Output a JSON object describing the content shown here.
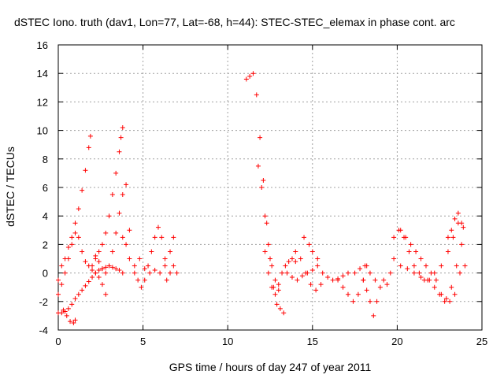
{
  "chart_data": {
    "type": "scatter",
    "title": "dSTEC Iono. truth (dav1, Lon=77, Lat=-68, h=44): STEC-STEC_elemax in phase cont. arc",
    "xlabel": "GPS time / hours of day 247 of year 2011",
    "ylabel": "dSTEC  / TECUs",
    "xlim": [
      0,
      25
    ],
    "ylim": [
      -4,
      16
    ],
    "xticks": [
      0,
      5,
      10,
      15,
      20,
      25
    ],
    "yticks": [
      -4,
      -2,
      0,
      2,
      4,
      6,
      8,
      10,
      12,
      14,
      16
    ],
    "grid": true,
    "legend": "none",
    "marker": "+",
    "series": [
      {
        "color": "#ff0000",
        "tracks": [
          {
            "x": [
              0.0,
              0.2,
              0.4,
              0.6,
              0.8,
              1.0,
              1.2,
              1.4,
              1.6,
              1.8,
              1.9
            ],
            "y": [
              -0.5,
              0.5,
              1.0,
              1.8,
              2.5,
              3.5,
              4.5,
              5.8,
              7.2,
              8.8,
              9.6
            ]
          },
          {
            "x": [
              0.0,
              0.2,
              0.4,
              0.6,
              0.8,
              1.0,
              1.2,
              1.4,
              1.6,
              1.8,
              2.0,
              2.2,
              2.4,
              2.6,
              2.8
            ],
            "y": [
              -1.5,
              -0.8,
              0.0,
              1.0,
              2.0,
              2.8,
              2.5,
              1.5,
              0.8,
              0.5,
              0.2,
              0.0,
              -0.3,
              -0.8,
              -1.5
            ]
          },
          {
            "x": [
              0.0,
              0.2,
              0.4,
              0.6,
              0.8,
              1.0,
              1.2,
              1.4,
              1.6,
              1.8,
              2.0,
              2.2,
              2.4,
              2.6,
              2.8,
              3.0,
              3.2,
              3.4,
              3.6,
              3.8
            ],
            "y": [
              -2.8,
              -2.8,
              -2.7,
              -2.5,
              -2.2,
              -1.8,
              -1.5,
              -1.2,
              -0.9,
              -0.6,
              -0.3,
              0.0,
              0.2,
              0.3,
              0.4,
              0.5,
              0.4,
              0.3,
              0.2,
              0.0
            ]
          },
          {
            "x": [
              0.3,
              0.5,
              0.7,
              0.9,
              1.0
            ],
            "y": [
              -2.6,
              -3.0,
              -3.4,
              -3.5,
              -3.3
            ]
          },
          {
            "x": [
              2.0,
              2.2,
              2.4,
              2.6,
              2.8,
              3.0,
              3.2,
              3.4,
              3.6,
              3.7,
              3.8
            ],
            "y": [
              0.5,
              1.0,
              1.5,
              2.0,
              2.8,
              4.0,
              5.5,
              7.0,
              8.5,
              9.5,
              10.2
            ]
          },
          {
            "x": [
              2.2,
              2.4,
              2.6,
              2.8,
              3.0,
              3.2,
              3.4,
              3.6,
              3.8,
              4.0,
              4.2
            ],
            "y": [
              1.2,
              0.8,
              0.3,
              0.0,
              0.5,
              1.5,
              2.8,
              4.2,
              5.5,
              6.2,
              3.0
            ]
          },
          {
            "x": [
              3.8,
              4.0,
              4.2
            ],
            "y": [
              2.5,
              2.0,
              1.0
            ]
          },
          {
            "x": [
              4.5,
              4.7,
              4.9,
              5.1,
              5.3,
              5.5,
              5.7,
              5.9,
              6.1,
              6.3
            ],
            "y": [
              0.0,
              -0.5,
              -1.0,
              -0.5,
              0.5,
              1.5,
              2.5,
              3.2,
              2.5,
              1.0
            ]
          },
          {
            "x": [
              4.5,
              4.8,
              5.1,
              5.4,
              5.7,
              6.0,
              6.3,
              6.6,
              6.8
            ],
            "y": [
              0.5,
              1.0,
              0.3,
              0.0,
              0.2,
              0.0,
              0.5,
              1.5,
              2.5
            ]
          },
          {
            "x": [
              6.4,
              6.6,
              6.8,
              7.0
            ],
            "y": [
              -0.5,
              0.0,
              0.5,
              0.0
            ]
          },
          {
            "x": [
              11.1,
              11.3,
              11.5,
              11.7,
              11.9,
              12.1,
              12.3,
              12.5,
              12.7,
              12.9,
              13.1,
              13.3
            ],
            "y": [
              13.6,
              13.8,
              14.0,
              12.5,
              9.5,
              6.5,
              3.5,
              1.0,
              -1.0,
              -2.2,
              -2.5,
              -2.8
            ]
          },
          {
            "x": [
              11.8,
              12.0,
              12.2,
              12.4,
              12.6,
              12.8,
              13.0
            ],
            "y": [
              7.5,
              6.0,
              4.0,
              2.0,
              0.5,
              -0.5,
              -1.2
            ]
          },
          {
            "x": [
              12.2,
              12.4,
              12.6,
              12.8,
              13.0,
              13.2,
              13.4,
              13.6,
              13.8,
              14.0
            ],
            "y": [
              1.5,
              0.0,
              -1.0,
              -1.5,
              -0.8,
              0.0,
              0.5,
              0.8,
              1.0,
              0.8
            ]
          },
          {
            "x": [
              13.5,
              13.8,
              14.1,
              14.4,
              14.7,
              15.0,
              15.3,
              15.6,
              15.9,
              16.2,
              16.5,
              16.8,
              17.1
            ],
            "y": [
              0.0,
              -0.3,
              -0.5,
              -0.2,
              0.0,
              0.2,
              0.5,
              0.0,
              -0.3,
              -0.5,
              -0.4,
              -0.2,
              0.0
            ]
          },
          {
            "x": [
              14.0,
              14.3,
              14.6,
              14.9,
              15.2,
              15.5
            ],
            "y": [
              1.5,
              1.0,
              0.0,
              -0.8,
              -1.2,
              -0.8
            ]
          },
          {
            "x": [
              14.5,
              14.8,
              15.0,
              15.3
            ],
            "y": [
              2.5,
              2.0,
              1.5,
              1.0
            ]
          },
          {
            "x": [
              16.5,
              16.8,
              17.1,
              17.4,
              17.7,
              18.0,
              18.2
            ],
            "y": [
              -0.5,
              -1.0,
              -1.5,
              -2.0,
              -1.5,
              -0.5,
              0.5
            ]
          },
          {
            "x": [
              17.5,
              17.8,
              18.1,
              18.4,
              18.7
            ],
            "y": [
              0.0,
              0.3,
              0.5,
              0.0,
              -0.5
            ]
          },
          {
            "x": [
              18.0,
              18.2,
              18.4,
              18.6,
              18.8,
              19.0,
              19.2,
              19.4,
              19.6
            ],
            "y": [
              -0.5,
              -1.2,
              -2.0,
              -3.0,
              -2.0,
              -1.0,
              -0.5,
              -0.8,
              0.0
            ]
          },
          {
            "x": [
              19.8,
              20.1,
              20.4,
              20.7,
              21.0,
              21.3,
              21.6,
              21.9,
              22.2,
              22.5,
              22.8,
              23.1,
              23.4,
              23.7,
              24.0
            ],
            "y": [
              2.5,
              3.0,
              2.5,
              1.5,
              0.5,
              0.0,
              -0.5,
              -0.5,
              -1.0,
              -1.5,
              -2.0,
              -2.0,
              -1.5,
              0.0,
              0.5
            ]
          },
          {
            "x": [
              19.8,
              20.2,
              20.6,
              21.0,
              21.4,
              21.8,
              22.2,
              22.6,
              23.0,
              23.3,
              23.6,
              23.9
            ],
            "y": [
              1.0,
              0.5,
              0.3,
              0.0,
              -0.3,
              -0.5,
              0.0,
              0.5,
              1.5,
              2.5,
              3.5,
              3.2
            ]
          },
          {
            "x": [
              20.2,
              20.5,
              20.8,
              21.1,
              21.4,
              21.7,
              22.0,
              22.3,
              22.6,
              22.9,
              23.2,
              23.5,
              23.8
            ],
            "y": [
              3.0,
              2.5,
              2.0,
              1.5,
              1.0,
              0.5,
              0.0,
              -0.5,
              -1.5,
              -1.8,
              -1.0,
              0.5,
              2.0
            ]
          },
          {
            "x": [
              23.0,
              23.2,
              23.4,
              23.6,
              23.8
            ],
            "y": [
              2.5,
              3.0,
              3.8,
              4.2,
              3.5
            ]
          }
        ]
      }
    ]
  }
}
